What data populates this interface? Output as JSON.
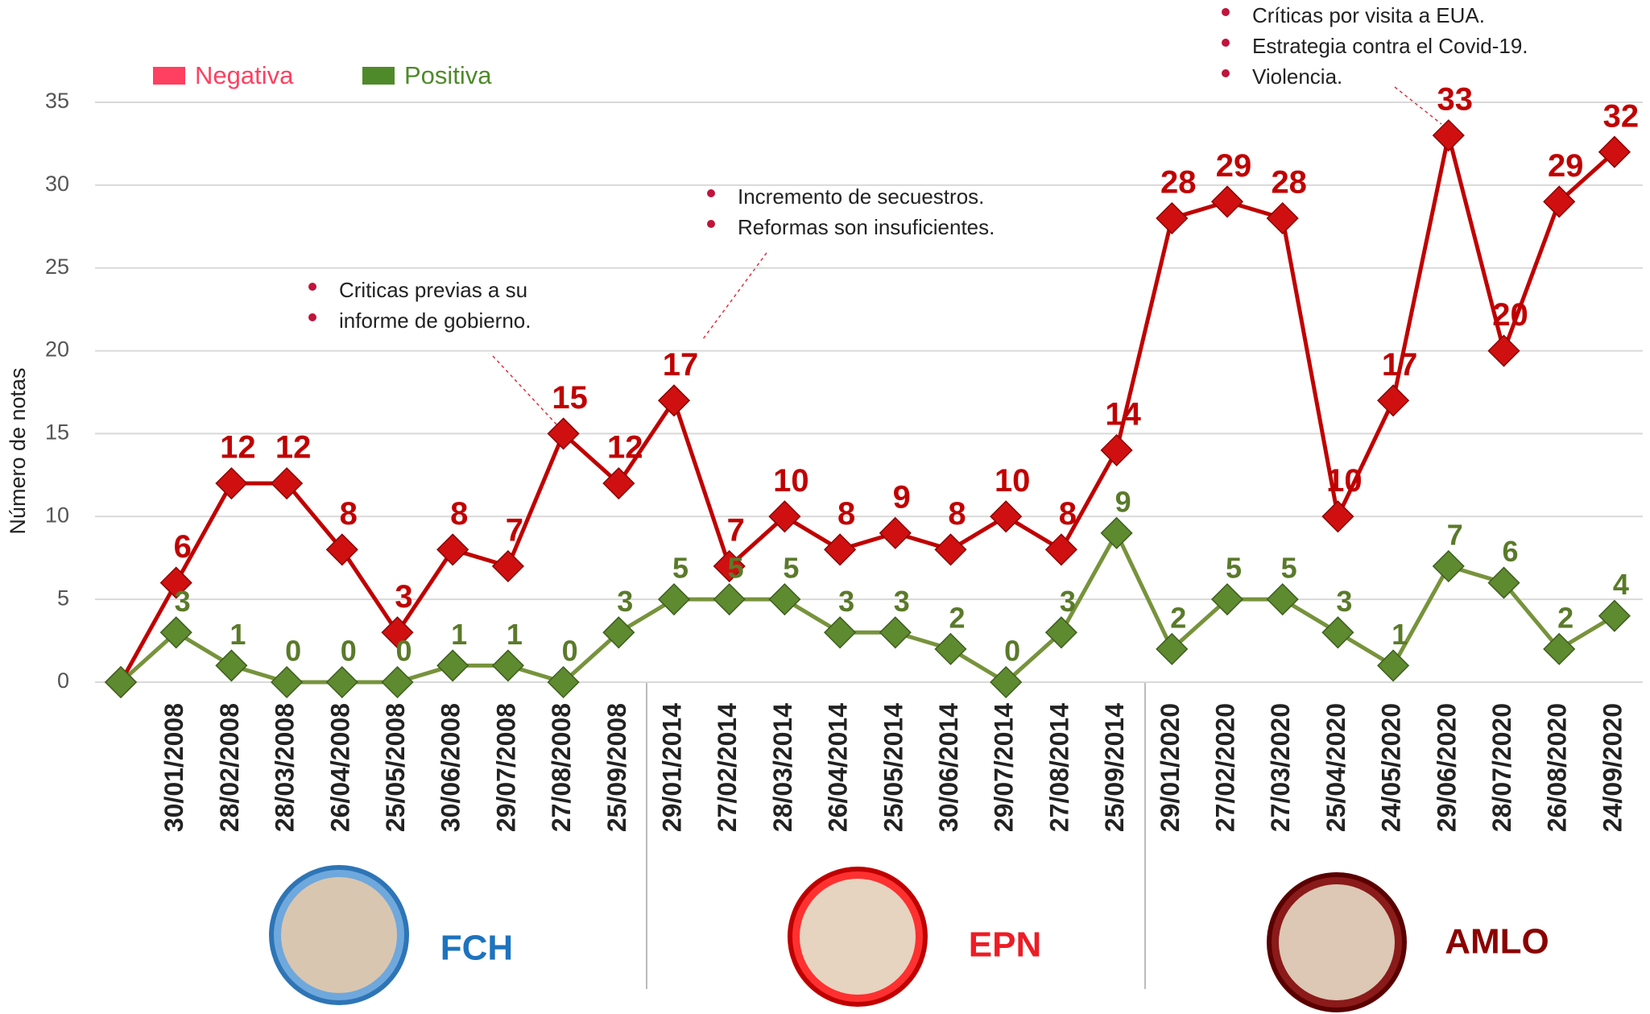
{
  "chart_data": {
    "type": "line",
    "y_label": "Número de notas",
    "categories": [
      null,
      "30/01/2008",
      "28/02/2008",
      "28/03/2008",
      "26/04/2008",
      "25/05/2008",
      "30/06/2008",
      "29/07/2008",
      "27/08/2008",
      "25/09/2008",
      "29/01/2014",
      "27/02/2014",
      "28/03/2014",
      "26/04/2014",
      "25/05/2014",
      "30/06/2014",
      "29/07/2014",
      "27/08/2014",
      "25/09/2014",
      "29/01/2020",
      "27/02/2020",
      "27/03/2020",
      "25/04/2020",
      "24/05/2020",
      "29/06/2020",
      "28/07/2020",
      "26/08/2020",
      "24/09/2020"
    ],
    "series": [
      {
        "name": "Negativa",
        "color": "#c00000",
        "legend_color": "#ff4060",
        "values": [
          0,
          6,
          12,
          12,
          8,
          3,
          8,
          7,
          15,
          12,
          17,
          7,
          10,
          8,
          9,
          8,
          10,
          8,
          14,
          28,
          29,
          28,
          10,
          17,
          33,
          20,
          29,
          32
        ]
      },
      {
        "name": "Positiva",
        "color": "#77933c",
        "legend_color": "#4f8a2a",
        "values": [
          0,
          3,
          1,
          0,
          0,
          0,
          1,
          1,
          0,
          3,
          5,
          5,
          5,
          3,
          3,
          2,
          0,
          3,
          9,
          2,
          5,
          5,
          3,
          1,
          7,
          6,
          2,
          4
        ]
      }
    ],
    "ylim": [
      0,
      35
    ],
    "yticks": [
      0,
      5,
      10,
      15,
      20,
      25,
      30,
      35
    ],
    "grid": true,
    "legend_position": "top-left",
    "annotations": [
      {
        "lines": [
          "Criticas previas a su",
          "informe de gobierno."
        ]
      },
      {
        "lines": [
          "Incremento de secuestros.",
          "Reformas son insuficientes."
        ]
      },
      {
        "lines": [
          "Críticas por visita a EUA.",
          "Estrategia contra el Covid-19.",
          "Violencia."
        ]
      }
    ],
    "periods": [
      "FCH",
      "EPN",
      "AMLO"
    ]
  }
}
